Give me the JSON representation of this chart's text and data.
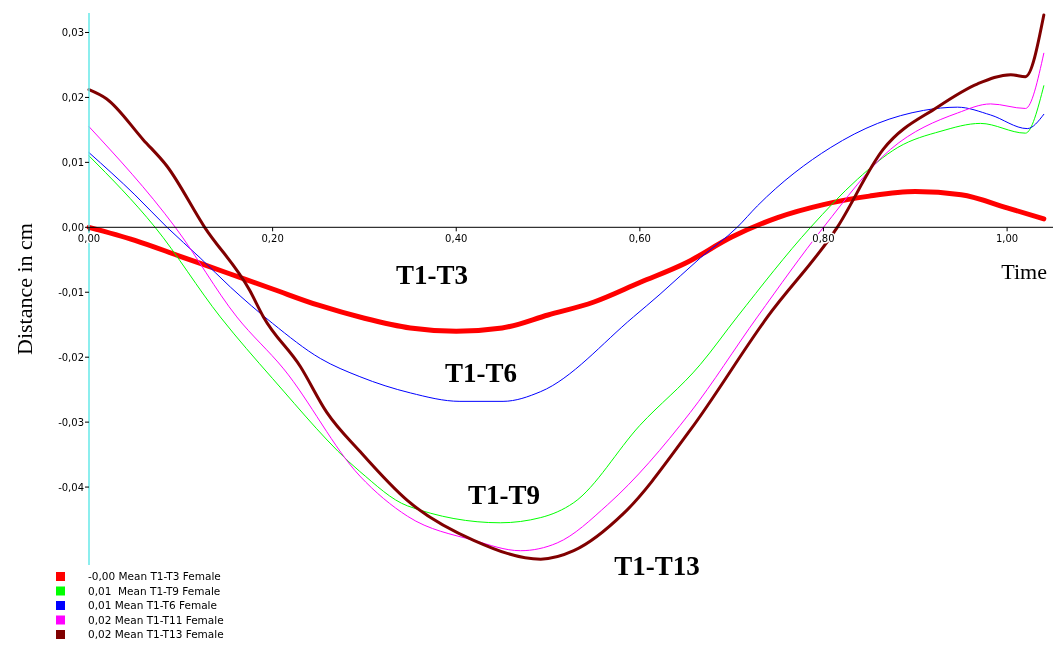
{
  "chart_data": {
    "type": "line",
    "xlabel": "Time",
    "ylabel": "Distance in cm",
    "xlim": [
      0,
      1.05
    ],
    "ylim": [
      -0.052,
      0.033
    ],
    "xticks": [
      {
        "value": 0,
        "label": "0,00"
      },
      {
        "value": 0.2,
        "label": "0,20"
      },
      {
        "value": 0.4,
        "label": "0,40"
      },
      {
        "value": 0.6,
        "label": "0,60"
      },
      {
        "value": 0.8,
        "label": "0,80"
      },
      {
        "value": 1,
        "label": "1,00"
      }
    ],
    "yticks": [
      {
        "value": -0.04,
        "label": "-0,04"
      },
      {
        "value": -0.03,
        "label": "-0,03"
      },
      {
        "value": -0.02,
        "label": "-0,02"
      },
      {
        "value": -0.01,
        "label": "-0,01"
      },
      {
        "value": 0,
        "label": "0,00"
      },
      {
        "value": 0.01,
        "label": "0,01"
      },
      {
        "value": 0.02,
        "label": "0,02"
      },
      {
        "value": 0.03,
        "label": "0,03"
      }
    ],
    "grid": false,
    "legend": "bottom left",
    "marker": "none",
    "line_style": "solid",
    "series": [
      {
        "name": "-0,00 Mean T1-T3 Female",
        "color": "#ff0000",
        "x": [
          0,
          0.05,
          0.1,
          0.15,
          0.2,
          0.25,
          0.3,
          0.35,
          0.4,
          0.45,
          0.5,
          0.55,
          0.6,
          0.65,
          0.7,
          0.75,
          0.8,
          0.85,
          0.9,
          0.95,
          1.0,
          1.04
        ],
        "values": [
          0,
          -0.002,
          -0.0045,
          -0.007,
          -0.0095,
          -0.012,
          -0.014,
          -0.0155,
          -0.016,
          -0.0155,
          -0.0135,
          -0.0115,
          -0.0085,
          -0.0055,
          -0.0015,
          0.0015,
          0.0035,
          0.0048,
          0.0055,
          0.005,
          0.003,
          0.0013
        ]
      },
      {
        "name": "0,01  Mean T1-T9 Female",
        "color": "#00ff00",
        "x": [
          0,
          0.072,
          0.143,
          0.2,
          0.295,
          0.347,
          0.448,
          0.492,
          0.528,
          0.6,
          0.666,
          0.706,
          0.786,
          0.837,
          0.881,
          0.928,
          0.971,
          1.02,
          1.04
        ],
        "values": [
          0.011,
          0,
          -0.0138,
          -0.0233,
          -0.0376,
          -0.0429,
          -0.0455,
          -0.0447,
          -0.0424,
          -0.0305,
          -0.0211,
          -0.0138,
          0,
          0.0074,
          0.0123,
          0.0148,
          0.016,
          0.0145,
          0.0218
        ]
      },
      {
        "name": "0,01 Mean T1-T6 Female",
        "color": "#0000ff",
        "x": [
          0,
          0.05,
          0.085,
          0.121,
          0.154,
          0.2,
          0.252,
          0.295,
          0.35,
          0.404,
          0.451,
          0.492,
          0.593,
          0.622,
          0.666,
          0.706,
          0.728,
          0.808,
          0.859,
          0.909,
          0.946,
          0.982,
          1.022,
          1.04
        ],
        "values": [
          0.0115,
          0.005,
          0,
          -0.0047,
          -0.0092,
          -0.0148,
          -0.0202,
          -0.023,
          -0.0255,
          -0.0268,
          -0.0268,
          -0.0253,
          -0.0138,
          -0.0103,
          -0.0047,
          0,
          0.0033,
          0.0123,
          0.016,
          0.018,
          0.0185,
          0.0173,
          0.0152,
          0.0174
        ]
      },
      {
        "name": "0,02 Mean T1-T11 Female",
        "color": "#ff00ff",
        "x": [
          0,
          0.094,
          0.161,
          0.212,
          0.295,
          0.347,
          0.419,
          0.47,
          0.51,
          0.565,
          0.655,
          0.728,
          0.8,
          0.873,
          0.946,
          0.982,
          1.02,
          1.04
        ],
        "values": [
          0.0155,
          0,
          -0.0138,
          -0.0218,
          -0.0383,
          -0.0445,
          -0.0482,
          -0.0498,
          -0.0486,
          -0.0427,
          -0.0285,
          -0.0138,
          0,
          0.012,
          0.0176,
          0.019,
          0.0183,
          0.0268
        ]
      },
      {
        "name": "0,02 Mean T1-T13 Female",
        "color": "#800000",
        "x": [
          0,
          0.019,
          0.059,
          0.085,
          0.126,
          0.175,
          0.19,
          0.23,
          0.259,
          0.295,
          0.347,
          0.419,
          0.492,
          0.528,
          0.582,
          0.655,
          0.739,
          0.815,
          0.865,
          0.924,
          0.968,
          1.004,
          1.02,
          1.04
        ],
        "values": [
          0.0212,
          0.0198,
          0.0135,
          0.0094,
          0,
          -0.0097,
          -0.0138,
          -0.0214,
          -0.0285,
          -0.0345,
          -0.0421,
          -0.0482,
          -0.0511,
          -0.0498,
          -0.0441,
          -0.0312,
          -0.0138,
          0,
          0.012,
          0.0185,
          0.0221,
          0.0235,
          0.0232,
          0.0327
        ]
      }
    ],
    "annotations": [
      "T1-T3",
      "T1-T6",
      "T1-T9",
      "T1-T13"
    ]
  }
}
